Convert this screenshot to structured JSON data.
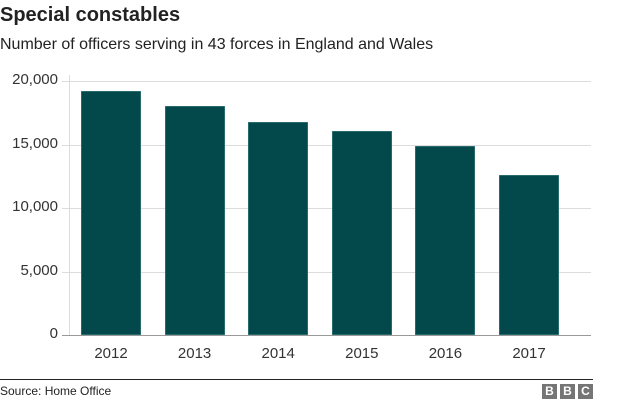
{
  "header": {
    "title": "Special constables",
    "subtitle": "Number of officers serving in 43 forces in England and Wales"
  },
  "footer": {
    "source": "Source: Home Office",
    "logo": [
      "B",
      "B",
      "C"
    ]
  },
  "colors": {
    "bar": "#03494c",
    "grid": "#dcdcdc",
    "text": "#222222",
    "logo_bg": "#757575"
  },
  "chart_data": {
    "type": "bar",
    "title": "Special constables",
    "subtitle": "Number of officers serving in 43 forces in England and Wales",
    "categories": [
      "2012",
      "2013",
      "2014",
      "2015",
      "2016",
      "2017"
    ],
    "values": [
      19200,
      18000,
      16800,
      16100,
      14900,
      12600
    ],
    "xlabel": "",
    "ylabel": "",
    "ylim": [
      0,
      20000
    ],
    "yticks": [
      0,
      5000,
      10000,
      15000,
      20000
    ],
    "ytick_labels": [
      "0",
      "5,000",
      "10,000",
      "15,000",
      "20,000"
    ],
    "grid": true,
    "legend": null,
    "source": "Source: Home Office"
  }
}
